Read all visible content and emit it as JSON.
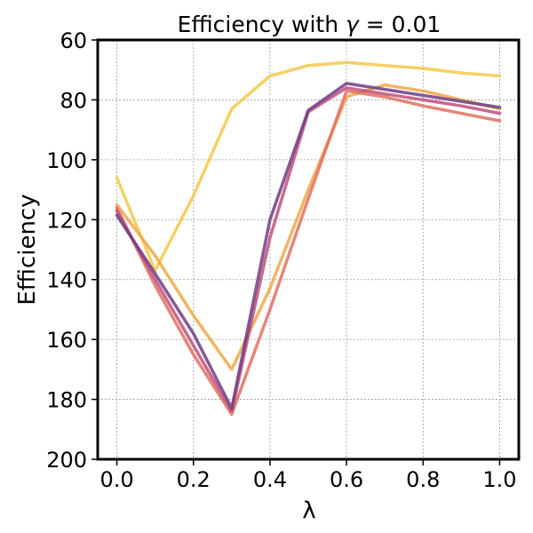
{
  "chart_data": {
    "type": "line",
    "title": "Efficiency with γ = 0.01",
    "title_parts": {
      "prefix": "Efficiency with ",
      "symbol": "γ",
      "suffix": " = 0.01"
    },
    "xlabel": "λ",
    "ylabel": "Efficiency",
    "xlim": [
      -0.05,
      1.05
    ],
    "ylim": [
      200,
      60
    ],
    "y_inverted": true,
    "grid": true,
    "legend": "none",
    "x_ticks": [
      0.0,
      0.2,
      0.4,
      0.6,
      0.8,
      1.0
    ],
    "x_tick_labels": [
      "0.0",
      "0.2",
      "0.4",
      "0.6",
      "0.8",
      "1.0"
    ],
    "y_ticks": [
      60,
      80,
      100,
      120,
      140,
      160,
      180,
      200
    ],
    "y_tick_labels": [
      "60",
      "80",
      "100",
      "120",
      "140",
      "160",
      "180",
      "200"
    ],
    "series": [
      {
        "name": "series-1",
        "color": "#f4c84a",
        "x": [
          0.0,
          0.1,
          0.2,
          0.3,
          0.4,
          0.5,
          0.6,
          0.7,
          0.8,
          0.9,
          1.0
        ],
        "values": [
          106,
          137,
          112,
          83,
          72,
          68.5,
          67.5,
          68.5,
          69.5,
          71,
          72
        ]
      },
      {
        "name": "series-2",
        "color": "#f0a848",
        "x": [
          0.0,
          0.1,
          0.2,
          0.3,
          0.4,
          0.5,
          0.6,
          0.7,
          0.8,
          0.9,
          1.0
        ],
        "values": [
          115,
          132,
          152,
          170,
          143,
          110,
          79,
          75,
          77,
          80,
          83
        ]
      },
      {
        "name": "series-3",
        "color": "#e07062",
        "x": [
          0.0,
          0.1,
          0.2,
          0.3,
          0.4,
          0.5,
          0.6,
          0.7,
          0.8,
          0.9,
          1.0
        ],
        "values": [
          116,
          142,
          165,
          185,
          150,
          113,
          77,
          79,
          82,
          84.5,
          87
        ]
      },
      {
        "name": "series-4",
        "color": "#c24f7a",
        "x": [
          0.0,
          0.1,
          0.2,
          0.3,
          0.4,
          0.5,
          0.6,
          0.7,
          0.8,
          0.9,
          1.0
        ],
        "values": [
          117,
          140,
          162,
          184,
          126,
          84,
          76,
          78,
          80,
          82,
          84.5
        ]
      },
      {
        "name": "series-5",
        "color": "#6e3d86",
        "x": [
          0.0,
          0.1,
          0.2,
          0.3,
          0.4,
          0.5,
          0.6,
          0.7,
          0.8,
          0.9,
          1.0
        ],
        "values": [
          118.5,
          138,
          158,
          183,
          120,
          83.5,
          74.5,
          76.5,
          78.5,
          80.5,
          82.5
        ]
      }
    ]
  }
}
